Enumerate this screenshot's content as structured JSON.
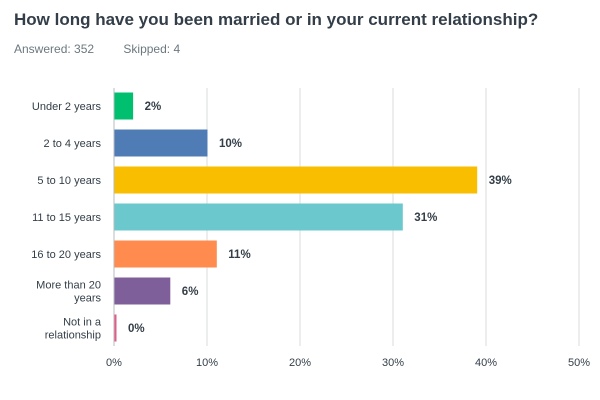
{
  "question": {
    "title": "How long have you been married or in your current relationship?",
    "answered_label": "Answered: 352",
    "skipped_label": "Skipped: 4"
  },
  "chart_data": {
    "type": "bar",
    "orientation": "horizontal",
    "categories": [
      "Under 2 years",
      "2 to 4 years",
      "5 to 10 years",
      "11 to 15 years",
      "16 to 20 years",
      "More than 20 years",
      "Not in a relationship"
    ],
    "category_lines": [
      [
        "Under 2 years"
      ],
      [
        "2 to 4 years"
      ],
      [
        "5 to 10 years"
      ],
      [
        "11 to 15 years"
      ],
      [
        "16 to 20 years"
      ],
      [
        "More than 20",
        "years"
      ],
      [
        "Not in a",
        "relationship"
      ]
    ],
    "values": [
      2,
      10,
      39,
      31,
      11,
      6,
      0
    ],
    "value_labels": [
      "2%",
      "10%",
      "39%",
      "31%",
      "11%",
      "6%",
      "0%"
    ],
    "colors": [
      "#00bf6f",
      "#507cb6",
      "#f9be00",
      "#6bc8cd",
      "#ff8b4f",
      "#7f5f99",
      "#e05c8a"
    ],
    "xlim": [
      0,
      50
    ],
    "x_ticks": [
      0,
      10,
      20,
      30,
      40,
      50
    ],
    "x_tick_labels": [
      "0%",
      "10%",
      "20%",
      "30%",
      "40%",
      "50%"
    ],
    "grid": true,
    "gridline_color": "#d9dcde"
  }
}
